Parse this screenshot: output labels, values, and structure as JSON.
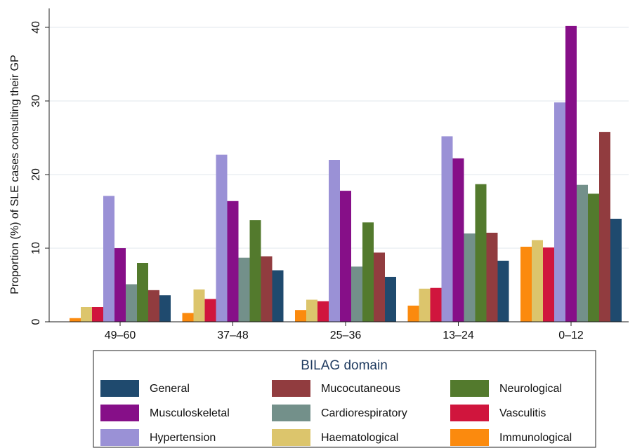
{
  "chart_data": {
    "type": "bar",
    "y_label": "Proportion (%) of SLE cases consulting their GP",
    "legend_title": "BILAG domain",
    "categories": [
      "49–60",
      "37–48",
      "25–36",
      "13–24",
      "0–12"
    ],
    "series": [
      {
        "name": "Immunological",
        "color": "#fb8a0e",
        "values": [
          0.5,
          1.2,
          1.6,
          2.2,
          10.2
        ]
      },
      {
        "name": "Haematological",
        "color": "#dcc56c",
        "values": [
          2.0,
          4.4,
          3.0,
          4.5,
          11.1
        ]
      },
      {
        "name": "Vasculitis",
        "color": "#d0153d",
        "values": [
          2.0,
          3.1,
          2.8,
          4.6,
          10.1
        ]
      },
      {
        "name": "Hypertension",
        "color": "#9a91d6",
        "values": [
          17.1,
          22.7,
          22.0,
          25.2,
          29.8
        ]
      },
      {
        "name": "Musculoskeletal",
        "color": "#860f88",
        "values": [
          10.0,
          16.4,
          17.8,
          22.2,
          40.2
        ]
      },
      {
        "name": "Cardiorespiratory",
        "color": "#73908a",
        "values": [
          5.1,
          8.7,
          7.5,
          12.0,
          18.6
        ]
      },
      {
        "name": "Neurological",
        "color": "#537a2d",
        "values": [
          8.0,
          13.8,
          13.5,
          18.7,
          17.4
        ]
      },
      {
        "name": "Mucocutaneous",
        "color": "#913c3f",
        "values": [
          4.3,
          8.9,
          9.4,
          12.1,
          25.8
        ]
      },
      {
        "name": "General",
        "color": "#1f4a6e",
        "values": [
          3.6,
          7.0,
          6.1,
          8.3,
          14.0
        ]
      }
    ],
    "ylim": [
      0,
      42
    ],
    "yticks": [
      0,
      10,
      20,
      30,
      40
    ],
    "grid": true
  }
}
